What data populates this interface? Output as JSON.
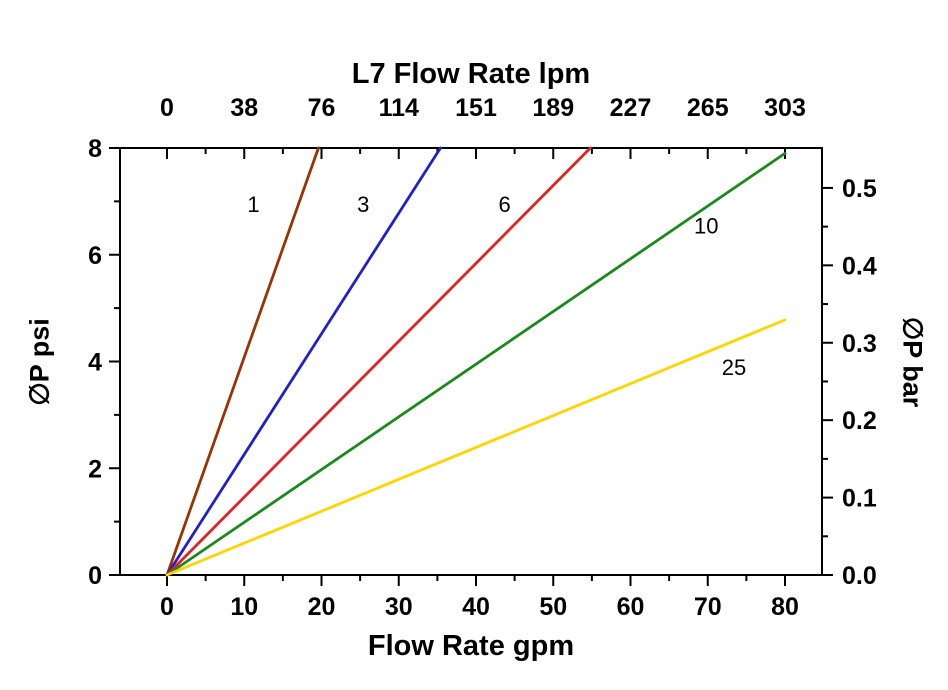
{
  "chart_data": {
    "type": "line",
    "title_top": "L7 Flow Rate lpm",
    "xlabel_bottom": "Flow Rate gpm",
    "ylabel_left": "∅P psi",
    "ylabel_right": "∅P bar",
    "grid": false,
    "legend": "inline-line-labels",
    "x_axis_bottom": {
      "unit": "gpm",
      "min": 0,
      "max": 80,
      "ticks": [
        0,
        10,
        20,
        30,
        40,
        50,
        60,
        70,
        80
      ],
      "minor_tick_step": 5
    },
    "x_axis_top": {
      "unit": "lpm",
      "tick_labels": [
        "0",
        "38",
        "76",
        "114",
        "151",
        "189",
        "227",
        "265",
        "303"
      ]
    },
    "y_axis_left": {
      "unit": "psi",
      "min": 0,
      "max": 8,
      "ticks": [
        0,
        2,
        4,
        6,
        8
      ],
      "minor_tick_step": 1
    },
    "y_axis_right": {
      "unit": "bar",
      "min": 0.0,
      "max": 0.55,
      "ticks": [
        0.0,
        0.1,
        0.2,
        0.3,
        0.4,
        0.5
      ],
      "tick_labels": [
        "0.0",
        "0.1",
        "0.2",
        "0.3",
        "0.4",
        "0.5"
      ],
      "minor_tick_step": 0.05,
      "psi_per_bar": 14.5038
    },
    "series": [
      {
        "label": "1",
        "color": "#993300",
        "points_gpm_psi": [
          [
            0,
            0
          ],
          [
            19.6,
            8
          ]
        ],
        "label_pos_gpm_psi": [
          11.2,
          6.95
        ]
      },
      {
        "label": "3",
        "color": "#2020CC",
        "points_gpm_psi": [
          [
            0,
            0
          ],
          [
            35.4,
            8
          ]
        ],
        "label_pos_gpm_psi": [
          25.4,
          6.95
        ]
      },
      {
        "label": "6",
        "color": "#E52222",
        "points_gpm_psi": [
          [
            0,
            0
          ],
          [
            54.8,
            8
          ]
        ],
        "label_pos_gpm_psi": [
          43.7,
          6.95
        ]
      },
      {
        "label": "10",
        "color": "#1B8A1B",
        "points_gpm_psi": [
          [
            0,
            0
          ],
          [
            80,
            7.9
          ]
        ],
        "label_pos_gpm_psi": [
          69.8,
          6.55
        ]
      },
      {
        "label": "25",
        "color": "#FFD400",
        "points_gpm_psi": [
          [
            0,
            0
          ],
          [
            80,
            4.78
          ]
        ],
        "label_pos_gpm_psi": [
          73.4,
          3.9
        ]
      }
    ]
  }
}
